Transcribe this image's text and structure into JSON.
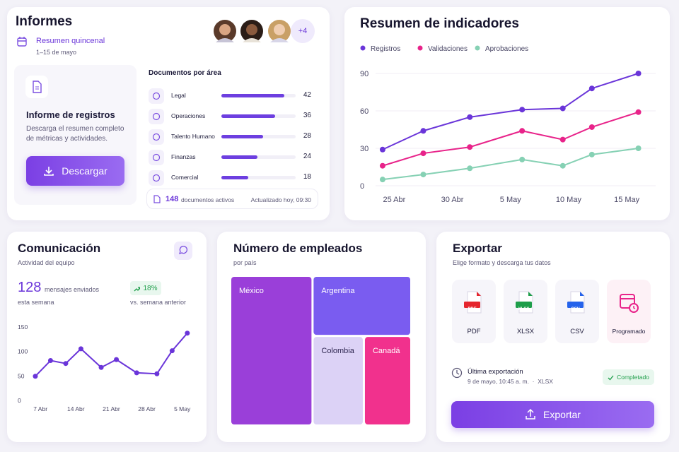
{
  "informes": {
    "title": "Informes",
    "period": {
      "title": "Resumen quincenal",
      "dates": "1–15 de mayo"
    },
    "team_more": "+4",
    "report": {
      "title": "Informe de registros",
      "description": "Descarga el resumen completo de métricas y actividades.",
      "button": "Descargar"
    },
    "documents": {
      "title": "Documentos por área",
      "categories": [
        "Legal",
        "Operaciones",
        "Talento Humano",
        "Finanzas",
        "Comercial"
      ],
      "values": [
        42,
        36,
        28,
        24,
        18
      ],
      "color": "#6d3fe0",
      "total": 148,
      "total_label": "documentos activos",
      "updated": "Actualizado hoy, 09:30"
    }
  },
  "chart_data": [
    {
      "type": "line",
      "title": "Resumen de indicadores",
      "x": [
        -1,
        2.5,
        6.5,
        11,
        14.5,
        17,
        21
      ],
      "xlim": [
        -2,
        22
      ],
      "xticks": [
        {
          "value": 0,
          "label": "25 Abr"
        },
        {
          "value": 5,
          "label": "30 Abr"
        },
        {
          "value": 10,
          "label": "5 May"
        },
        {
          "value": 15,
          "label": "10 May"
        },
        {
          "value": 20,
          "label": "15 May"
        }
      ],
      "ylim": [
        0,
        90
      ],
      "yticks": [
        0,
        30,
        60,
        90
      ],
      "grid": true,
      "legend": "top",
      "series": [
        {
          "name": "Registros",
          "color": "#6a35d9",
          "values": [
            29,
            44,
            55,
            61,
            62,
            78,
            90
          ]
        },
        {
          "name": "Validaciones",
          "color": "#e8238a",
          "values": [
            16,
            26,
            31,
            44,
            37,
            47,
            59
          ]
        },
        {
          "name": "Aprobaciones",
          "color": "#86d1b4",
          "values": [
            5,
            9,
            14,
            21,
            16,
            25,
            30
          ]
        }
      ]
    },
    {
      "type": "line",
      "title": "Comunicación",
      "subtitle": "Actividad del equipo",
      "x": [
        -1,
        2,
        5,
        8,
        12,
        15,
        19,
        23,
        26,
        29
      ],
      "xlim": [
        -2,
        30
      ],
      "xticks": [
        {
          "value": 0,
          "label": "7 Abr"
        },
        {
          "value": 7,
          "label": "14 Abr"
        },
        {
          "value": 14,
          "label": "21 Abr"
        },
        {
          "value": 21,
          "label": "28 Abr"
        },
        {
          "value": 28,
          "label": "5 May"
        }
      ],
      "ylim": [
        0,
        150
      ],
      "yticks": [
        0,
        50,
        100,
        150
      ],
      "grid": false,
      "series": [
        {
          "name": null,
          "color": "#6a35d9",
          "values": [
            48,
            80,
            74,
            104,
            66,
            82,
            55,
            53,
            100,
            136
          ]
        }
      ]
    },
    {
      "type": "treemap",
      "title": "Número de empleados",
      "subtitle": "por país",
      "categories": [
        "México",
        "Argentina",
        "Colombia",
        "Canadá"
      ],
      "values": [
        46,
        22,
        17,
        15
      ],
      "colors": [
        "#9a3fd9",
        "#7a5cf0",
        "#dcd2f6",
        "#f1318d"
      ]
    }
  ],
  "comunicacion": {
    "count": 128,
    "count_label": "mensajes enviados",
    "period": "esta semana",
    "change": "18%",
    "change_label": "vs. semana anterior"
  },
  "exportar": {
    "title": "Exportar",
    "subtitle": "Elige formato y descarga tus datos",
    "formats": [
      {
        "label": "PDF",
        "badge": "PDF",
        "color": "#e5262e"
      },
      {
        "label": "XLSX",
        "badge": "XLSX",
        "color": "#1e9e4a"
      },
      {
        "label": "CSV",
        "badge": "CSV",
        "color": "#2563eb"
      },
      {
        "label": "Programado",
        "color": "#e8238a"
      }
    ],
    "last": {
      "title": "Última exportación",
      "detail": "9 de mayo, 10:45 a. m.  ·  XLSX",
      "status": "Completado"
    },
    "button": "Exportar"
  }
}
